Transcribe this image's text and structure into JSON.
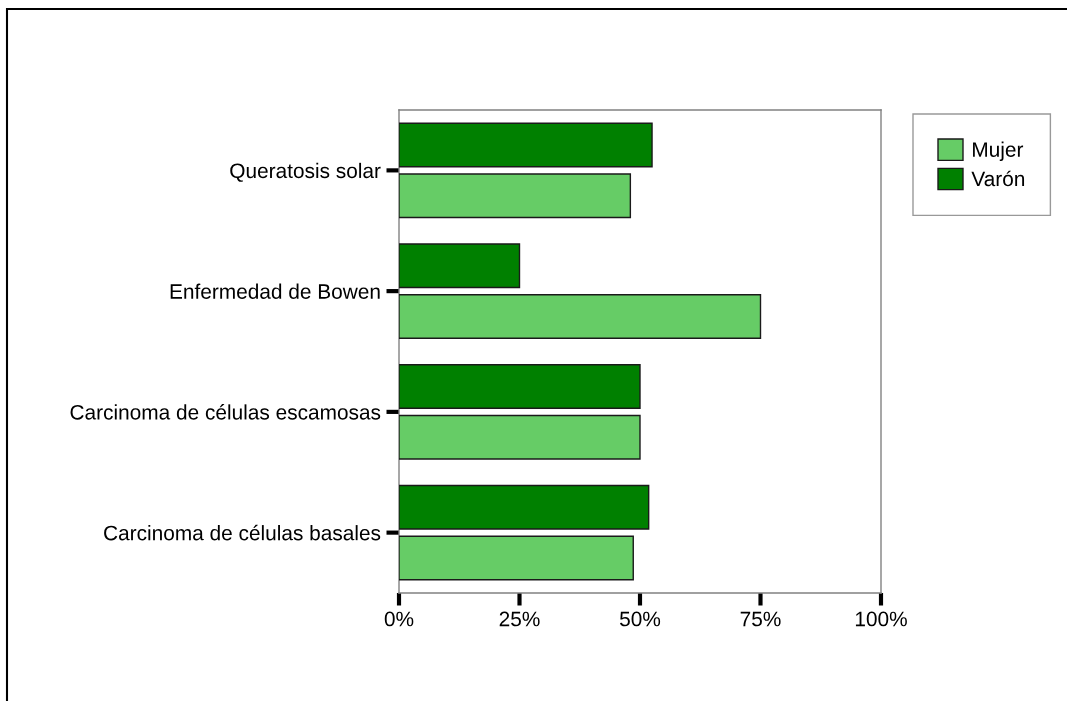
{
  "chart_data": {
    "type": "bar",
    "orientation": "horizontal",
    "categories": [
      "Queratosis solar",
      "Enfermedad de Bowen",
      "Carcinoma de células escamosas",
      "Carcinoma de células basales"
    ],
    "series": [
      {
        "name": "Mujer",
        "color": "#66cc66",
        "values": [
          48,
          75,
          50,
          48.6
        ]
      },
      {
        "name": "Varón",
        "color": "#008000",
        "values": [
          52.5,
          25,
          50,
          51.8
        ]
      }
    ],
    "xlim": [
      0,
      100
    ],
    "xticks": [
      {
        "value": 0,
        "label": "0%"
      },
      {
        "value": 25,
        "label": "25%"
      },
      {
        "value": 50,
        "label": "50%"
      },
      {
        "value": 75,
        "label": "75%"
      },
      {
        "value": 100,
        "label": "100%"
      }
    ],
    "legend": "top right"
  }
}
